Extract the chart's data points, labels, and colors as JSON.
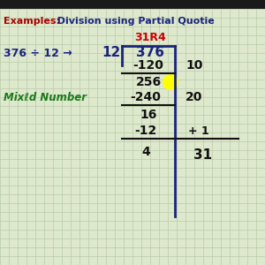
{
  "bg_color": "#dde8cc",
  "grid_color": "#b8ccaa",
  "title_examples": "Examples:",
  "title_main": "  Division using Partial Quotie",
  "title_examples_color": "#aa0000",
  "title_main_color": "#1a237e",
  "problem_text": "376 ÷ 12 →",
  "problem_color": "#1a237e",
  "mixed_number_text": "Mixℓd Number",
  "mixed_number_color": "#1a7a1a",
  "answer_text": "31R4",
  "answer_color": "#cc0000",
  "division_color": "#1a237e",
  "highlight_color": "#ffff00",
  "top_bar_color": "#1a1a1a",
  "text_color": "#111111"
}
